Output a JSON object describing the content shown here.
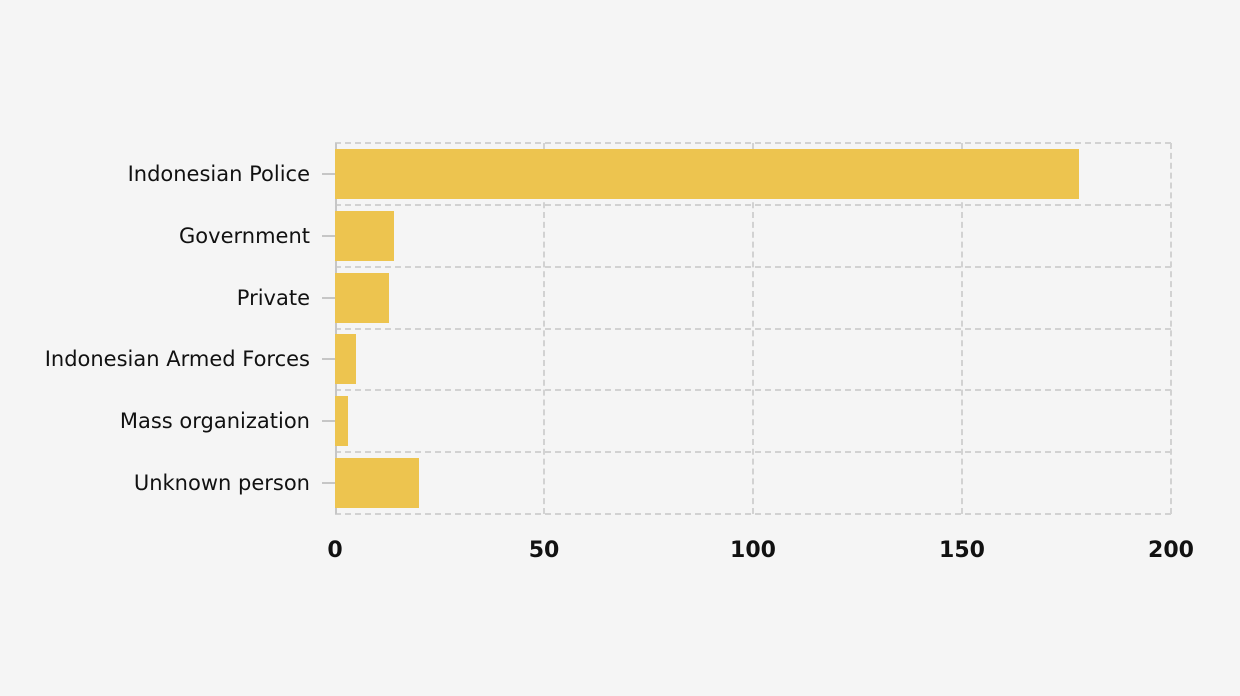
{
  "chart_data": {
    "type": "bar",
    "orientation": "horizontal",
    "title": "",
    "xlabel": "",
    "ylabel": "",
    "categories": [
      "Indonesian Police",
      "Government",
      "Private",
      "Indonesian Armed Forces",
      "Mass organization",
      "Unknown person"
    ],
    "values": [
      178,
      14,
      13,
      5,
      3,
      20
    ],
    "xlim": [
      0,
      200
    ],
    "xticks": [
      0,
      50,
      100,
      150,
      200
    ],
    "grid": "dashed",
    "legend": "none",
    "colors": {
      "bar": "#EDC44F",
      "background": "#F5F5F5",
      "grid": "#D2D2D2",
      "axis": "#C6C6C6",
      "text": "#111111"
    }
  }
}
